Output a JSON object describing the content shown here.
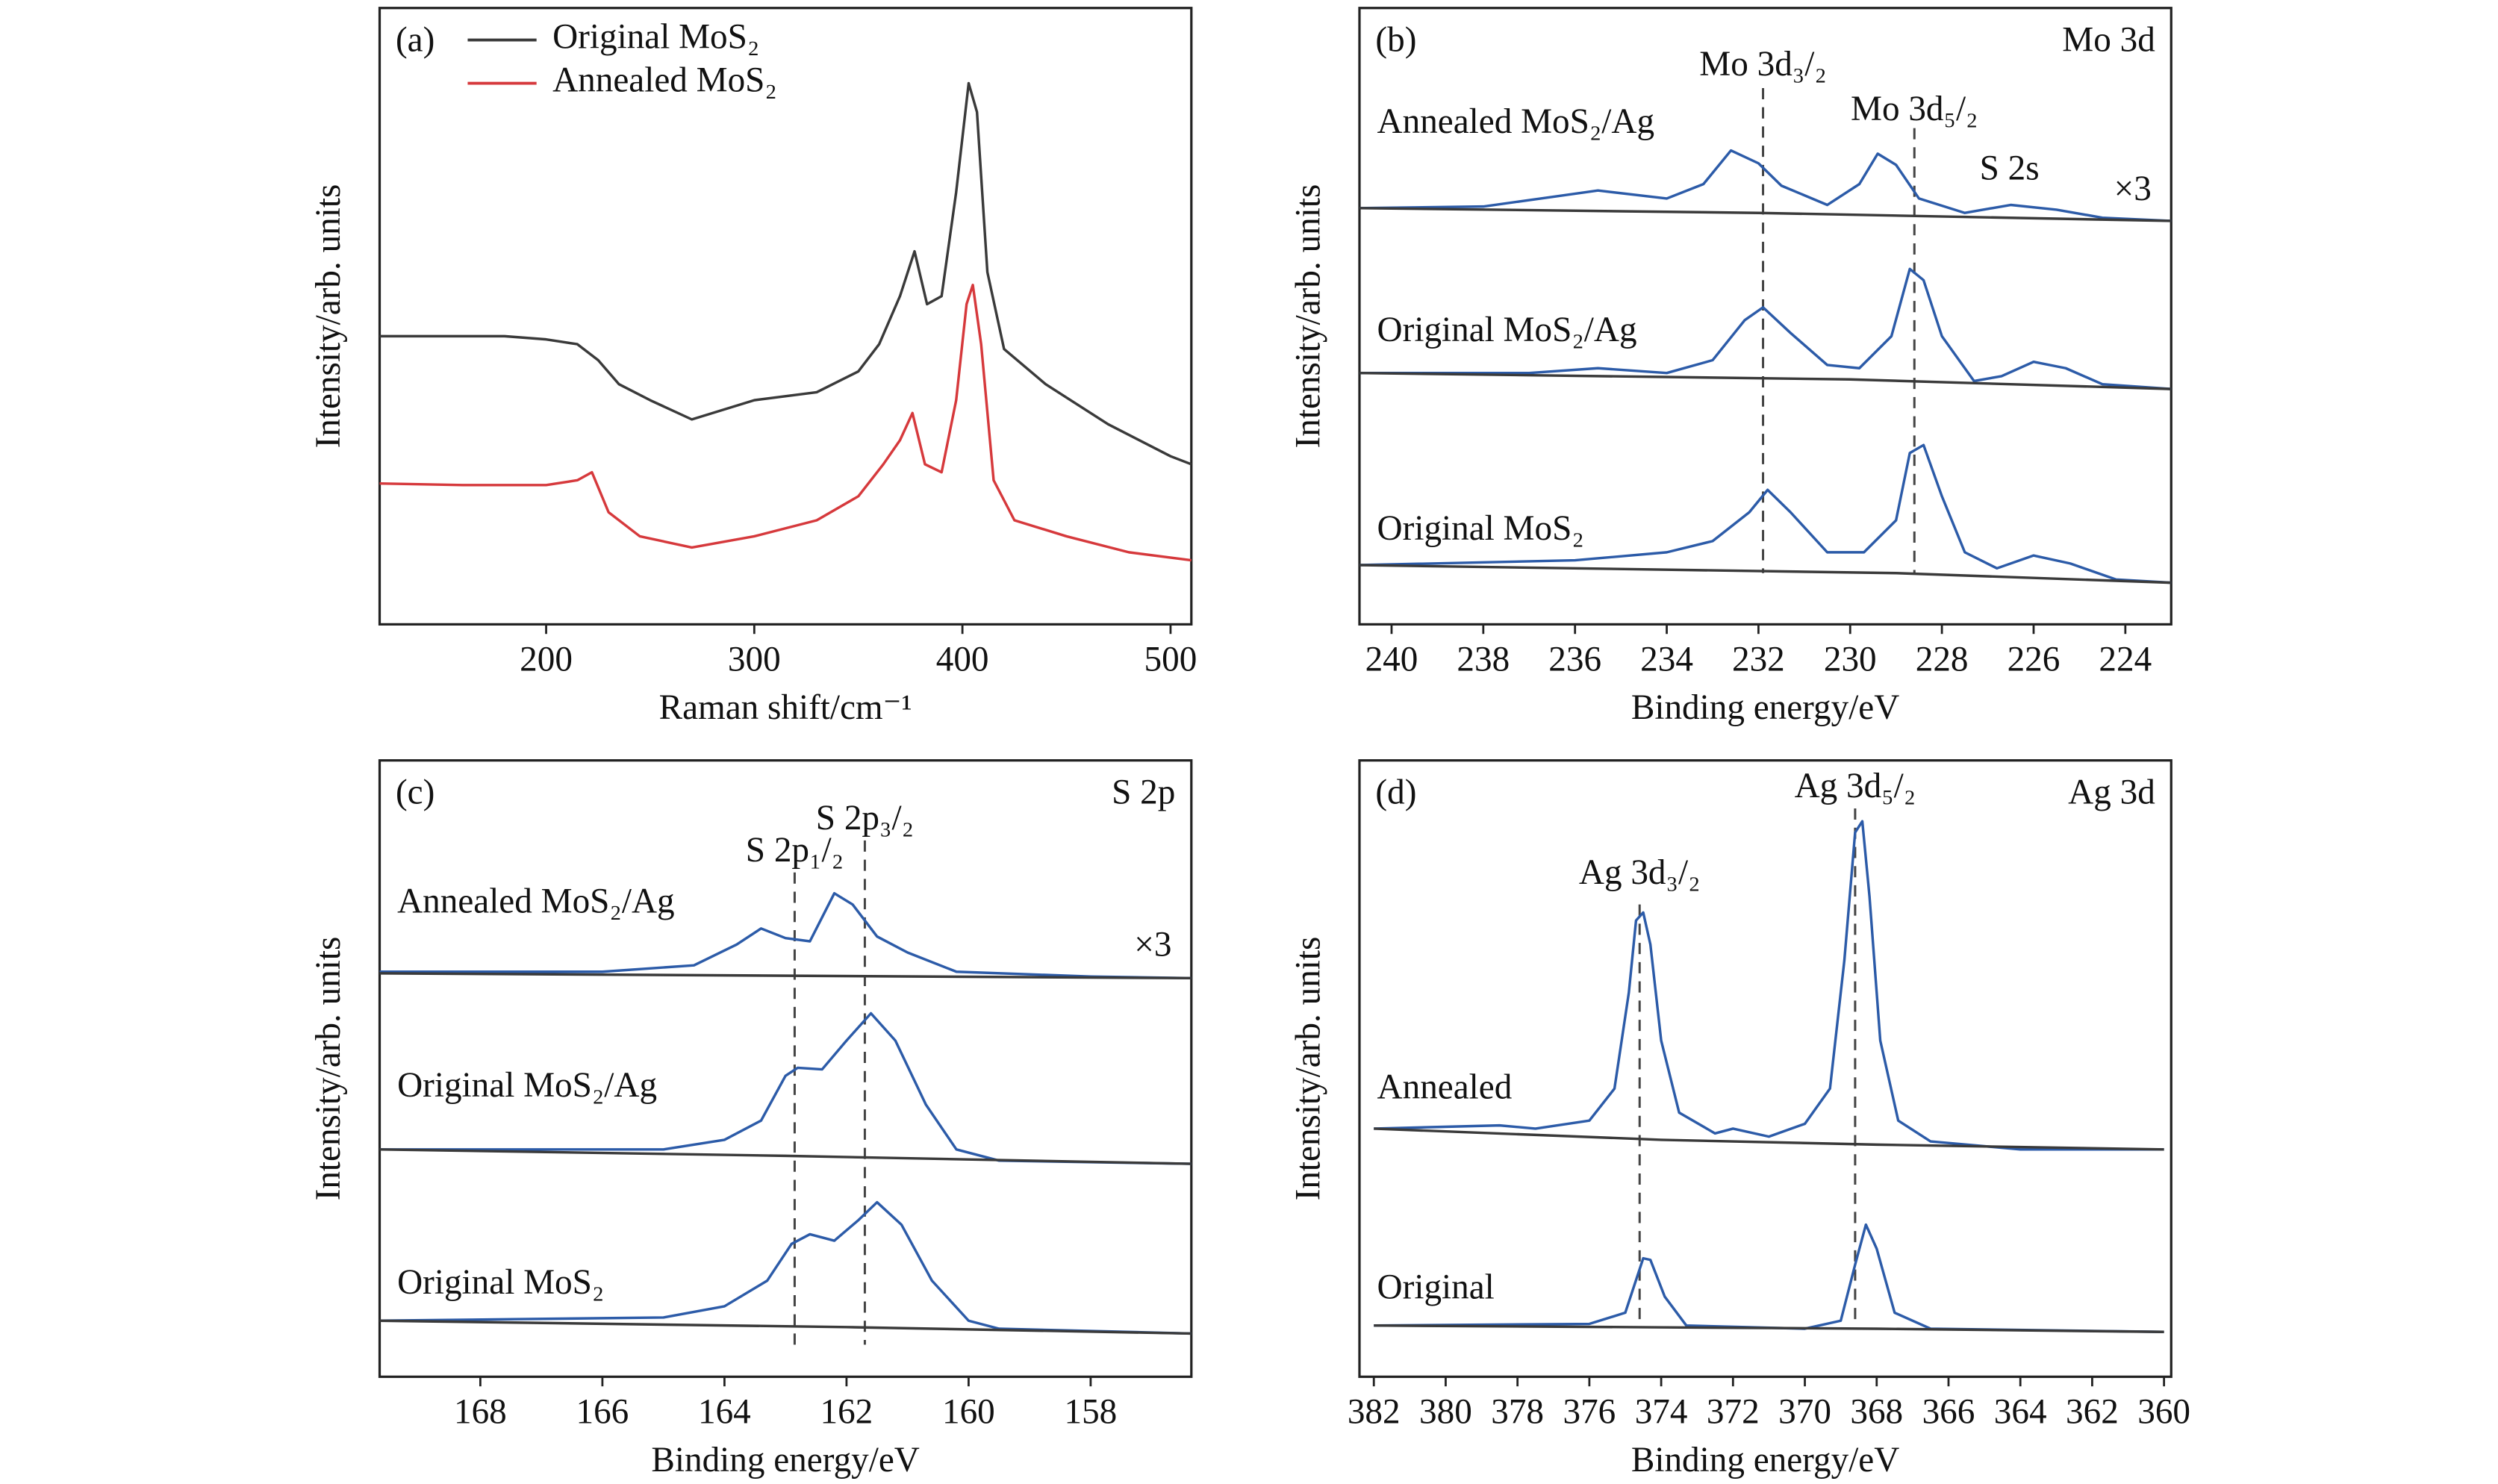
{
  "chart_data": [
    {
      "type": "line",
      "panel": "(a)",
      "xlabel": "Raman shift/cm⁻¹",
      "ylabel": "Intensity/arb. units",
      "xlim": [
        120,
        510
      ],
      "ylim": [
        0,
        385
      ],
      "xticks": [
        200,
        300,
        400,
        500
      ],
      "legend": "upper left",
      "series": [
        {
          "name": "Original MoS₂",
          "color": "#3a3a3a",
          "x": [
            120,
            150,
            180,
            200,
            215,
            225,
            235,
            250,
            270,
            300,
            330,
            350,
            360,
            370,
            377,
            383,
            390,
            397,
            403,
            407,
            412,
            420,
            440,
            470,
            500,
            510
          ],
          "values": [
            180,
            180,
            180,
            178,
            175,
            165,
            150,
            140,
            128,
            140,
            145,
            158,
            175,
            205,
            233,
            200,
            205,
            270,
            338,
            320,
            220,
            172,
            150,
            125,
            105,
            100
          ]
        },
        {
          "name": "Annealed MoS₂",
          "color": "#d6393c",
          "x": [
            120,
            160,
            200,
            215,
            222,
            230,
            245,
            270,
            300,
            330,
            350,
            362,
            370,
            376,
            382,
            390,
            397,
            402,
            405,
            409,
            415,
            425,
            450,
            480,
            510
          ],
          "values": [
            88,
            87,
            87,
            90,
            95,
            70,
            55,
            48,
            55,
            65,
            80,
            100,
            115,
            132,
            100,
            95,
            140,
            200,
            212,
            175,
            90,
            65,
            55,
            45,
            40
          ]
        }
      ]
    },
    {
      "type": "line",
      "panel": "(b)",
      "corner_label": "Mo 3d",
      "xlabel": "Binding energy/eV",
      "ylabel": "Intensity/arb. units",
      "xlim": [
        240.7,
        223
      ],
      "ylim": [
        0,
        385
      ],
      "xticks": [
        240,
        238,
        236,
        234,
        232,
        230,
        228,
        226,
        224
      ],
      "peaks": [
        {
          "x": 231.9,
          "label": "Mo 3d₃/₂"
        },
        {
          "x": 228.6,
          "label": "Mo 3d₅/₂"
        }
      ],
      "annotations": [
        "S 2s",
        "×3"
      ],
      "series": [
        {
          "name": "Annealed MoS₂/Ag",
          "color": "#2c5ba8",
          "x": [
            240.7,
            238,
            236.5,
            235.5,
            234,
            233.2,
            232.6,
            232,
            231.5,
            230.5,
            229.8,
            229.4,
            229,
            228.5,
            227.5,
            226.5,
            225.5,
            224.5,
            223
          ],
          "values": [
            260,
            261,
            267,
            271,
            266,
            275,
            296,
            288,
            274,
            262,
            275,
            294,
            287,
            266,
            257,
            262,
            259,
            254,
            252
          ]
        },
        {
          "color": "#3a3a3a",
          "x": [
            240.7,
            232,
            223
          ],
          "values": [
            260,
            257,
            252
          ]
        },
        {
          "name": "Original MoS₂/Ag",
          "color": "#2c5ba8",
          "x": [
            240.7,
            237,
            235.5,
            234,
            233,
            232.3,
            231.9,
            231.3,
            230.5,
            229.8,
            229.1,
            228.7,
            228.4,
            228,
            227.3,
            226.7,
            226,
            225.3,
            224.5,
            223
          ],
          "values": [
            157,
            157,
            160,
            157,
            165,
            190,
            198,
            182,
            162,
            160,
            180,
            222,
            215,
            180,
            152,
            155,
            164,
            160,
            150,
            147
          ]
        },
        {
          "color": "#3a3a3a",
          "x": [
            240.7,
            230,
            223
          ],
          "values": [
            157,
            153,
            147
          ]
        },
        {
          "name": "Original MoS₂",
          "color": "#2c5ba8",
          "x": [
            240.7,
            236,
            234,
            233,
            232.2,
            231.8,
            231.3,
            230.5,
            229.7,
            229,
            228.7,
            228.4,
            228,
            227.5,
            226.8,
            226,
            225.2,
            224.2,
            223
          ],
          "values": [
            37,
            40,
            45,
            52,
            70,
            84,
            70,
            45,
            45,
            65,
            107,
            112,
            80,
            45,
            35,
            43,
            38,
            28,
            26
          ]
        },
        {
          "color": "#3a3a3a",
          "x": [
            240.7,
            229,
            223
          ],
          "values": [
            37,
            32,
            26
          ]
        }
      ]
    },
    {
      "type": "line",
      "panel": "(c)",
      "corner_label": "S 2p",
      "xlabel": "Binding energy/eV",
      "ylabel": "Intensity/arb. units",
      "xlim": [
        169.65,
        156.35
      ],
      "ylim": [
        0,
        385
      ],
      "xticks": [
        168,
        166,
        164,
        162,
        160,
        158
      ],
      "peaks": [
        {
          "x": 162.85,
          "label": "S 2p₁/₂"
        },
        {
          "x": 161.7,
          "label": "S 2p₃/₂"
        }
      ],
      "annotations": [
        "×3"
      ],
      "series": [
        {
          "name": "Annealed MoS₂/Ag",
          "color": "#2c5ba8",
          "x": [
            169.65,
            166,
            164.5,
            163.8,
            163.4,
            163,
            162.6,
            162.2,
            161.9,
            161.5,
            161,
            160.2,
            158,
            156.35
          ],
          "values": [
            253,
            253,
            257,
            270,
            280,
            274,
            272,
            302,
            295,
            275,
            265,
            253,
            250,
            249
          ]
        },
        {
          "color": "#3a3a3a",
          "x": [
            169.65,
            156.35
          ],
          "values": [
            252,
            249
          ]
        },
        {
          "name": "Original MoS₂/Ag",
          "color": "#2c5ba8",
          "x": [
            169.65,
            165,
            164,
            163.4,
            163,
            162.8,
            162.4,
            162,
            161.6,
            161.2,
            160.7,
            160.2,
            159.5,
            156.35
          ],
          "values": [
            142,
            142,
            148,
            160,
            188,
            193,
            192,
            210,
            227,
            210,
            170,
            142,
            135,
            133
          ]
        },
        {
          "color": "#3a3a3a",
          "x": [
            169.65,
            163,
            156.35
          ],
          "values": [
            142,
            138,
            133
          ]
        },
        {
          "name": "Original MoS₂",
          "color": "#2c5ba8",
          "x": [
            169.65,
            165,
            164,
            163.3,
            162.9,
            162.6,
            162.2,
            161.8,
            161.5,
            161.1,
            160.6,
            160,
            159.5,
            156.35
          ],
          "values": [
            35,
            37,
            44,
            60,
            83,
            89,
            85,
            98,
            109,
            95,
            60,
            35,
            30,
            27
          ]
        },
        {
          "color": "#3a3a3a",
          "x": [
            169.65,
            162,
            156.35
          ],
          "values": [
            35,
            31,
            27
          ]
        }
      ]
    },
    {
      "type": "line",
      "panel": "(d)",
      "corner_label": "Ag 3d",
      "xlabel": "Binding energy/eV",
      "ylabel": "Intensity/arb. units",
      "xlim": [
        382.4,
        359.8
      ],
      "ylim": [
        0,
        385
      ],
      "xticks": [
        382,
        380,
        378,
        376,
        374,
        372,
        370,
        368,
        366,
        364,
        362,
        360
      ],
      "peaks": [
        {
          "x": 374.6,
          "label": "Ag 3d₃/₂"
        },
        {
          "x": 368.6,
          "label": "Ag 3d₅/₂"
        }
      ],
      "series": [
        {
          "name": "Annealed",
          "color": "#2c5ba8",
          "x": [
            382,
            378.5,
            377.5,
            376,
            375.3,
            374.9,
            374.7,
            374.5,
            374.3,
            374,
            373.5,
            372.5,
            372,
            371,
            370,
            369.3,
            368.9,
            368.6,
            368.4,
            368.2,
            367.9,
            367.4,
            366.5,
            364,
            360
          ],
          "values": [
            155,
            157,
            155,
            160,
            180,
            240,
            285,
            290,
            270,
            210,
            165,
            152,
            155,
            150,
            158,
            180,
            260,
            340,
            347,
            300,
            210,
            160,
            147,
            142,
            142
          ]
        },
        {
          "color": "#3a3a3a",
          "x": [
            382,
            374,
            368,
            360
          ],
          "values": [
            155,
            148,
            145,
            142
          ]
        },
        {
          "name": "Original",
          "color": "#2c5ba8",
          "x": [
            382,
            376,
            375,
            374.5,
            374.3,
            373.9,
            373.3,
            370,
            369,
            368.6,
            368.3,
            368,
            367.5,
            366.5,
            360
          ],
          "values": [
            32,
            33,
            40,
            74,
            73,
            50,
            32,
            30,
            35,
            70,
            95,
            80,
            40,
            30,
            28
          ]
        },
        {
          "color": "#3a3a3a",
          "x": [
            382,
            368,
            360
          ],
          "values": [
            32,
            30,
            28
          ]
        }
      ]
    }
  ]
}
